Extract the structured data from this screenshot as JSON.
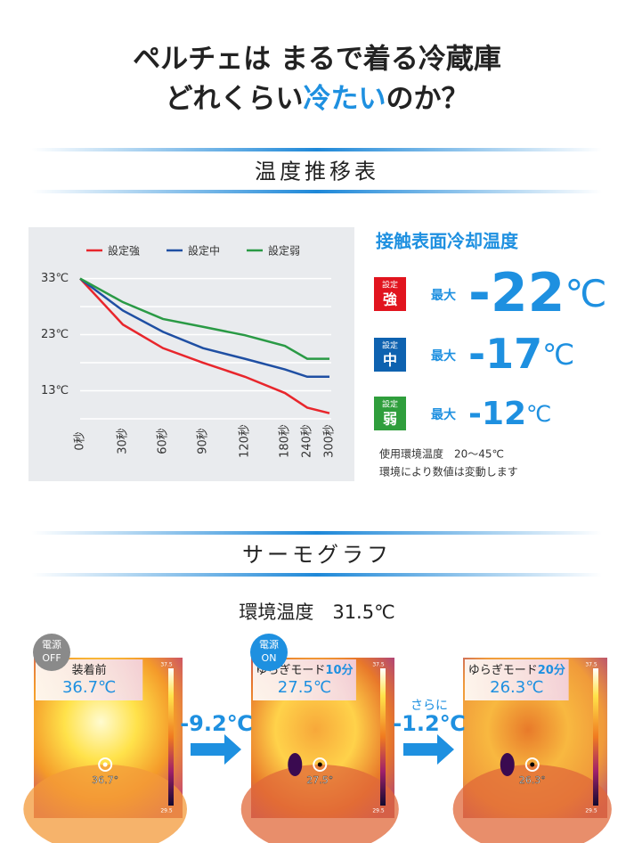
{
  "header": {
    "line1": "ペルチェは まるで着る冷蔵庫",
    "line2_pre": "どれくらい",
    "line2_highlight": "冷たい",
    "line2_post": "のか？"
  },
  "sections": [
    "温度推移表",
    "サーモグラフ"
  ],
  "chart": {
    "type": "line",
    "categories": [
      "0秒",
      "30秒",
      "60秒",
      "90秒",
      "120秒",
      "180秒",
      "240秒",
      "300秒"
    ],
    "series": [
      {
        "name": "設定強",
        "color": "#e8262c",
        "values": [
          33,
          24.8,
          20.6,
          18,
          15.5,
          12.6,
          10,
          9
        ]
      },
      {
        "name": "設定中",
        "color": "#1f4fa3",
        "values": [
          33,
          27.3,
          23.5,
          20.6,
          18.7,
          16.8,
          15.5,
          15.5
        ]
      },
      {
        "name": "設定弱",
        "color": "#2a9a45",
        "values": [
          33,
          28.8,
          25.8,
          24.4,
          22.9,
          21,
          18.7,
          18.7
        ]
      }
    ],
    "ylim": [
      8,
      35
    ],
    "yticks": [
      {
        "value": 33,
        "label": "33℃"
      },
      {
        "value": 23,
        "label": "23℃"
      },
      {
        "value": 13,
        "label": "13℃"
      }
    ],
    "grid_values": [
      33,
      28,
      23,
      18,
      13,
      8
    ]
  },
  "cooling": {
    "title": "接触表面冷却温度",
    "rows": [
      {
        "setting_label": "設定",
        "setting": "強",
        "color": "#e1141e",
        "max_label": "最大",
        "value": -22,
        "unit": "℃"
      },
      {
        "setting_label": "設定",
        "setting": "中",
        "color": "#0e62b0",
        "max_label": "最大",
        "value": -17,
        "unit": "℃"
      },
      {
        "setting_label": "設定",
        "setting": "弱",
        "color": "#2f9e3c",
        "max_label": "最大",
        "value": -12,
        "unit": "℃"
      }
    ],
    "notes": [
      "使用環境温度　20〜45℃",
      "環境により数値は変動します"
    ]
  },
  "ambient": "環境温度　31.5℃",
  "thermo": {
    "images": [
      {
        "badge": [
          "電源",
          "OFF"
        ],
        "label_main": "装着前",
        "label_time": null,
        "temp": "36.7℃",
        "spot": "36.7°",
        "scale_max": "37.5",
        "scale_min": "29.5"
      },
      {
        "badge": [
          "電源",
          "ON"
        ],
        "label_main": "ゆらぎモード",
        "label_time": "10分",
        "temp": "27.5℃",
        "spot": "27.5°",
        "scale_max": "37.5",
        "scale_min": "29.5"
      },
      {
        "badge": null,
        "label_main": "ゆらぎモード",
        "label_time": "20分",
        "temp": "26.3℃",
        "spot": "26.3°",
        "scale_max": "37.5",
        "scale_min": "29.5"
      }
    ],
    "deltas": [
      {
        "pre": null,
        "value": "-9.2℃"
      },
      {
        "pre": "さらに",
        "value": "-1.2℃"
      }
    ]
  }
}
